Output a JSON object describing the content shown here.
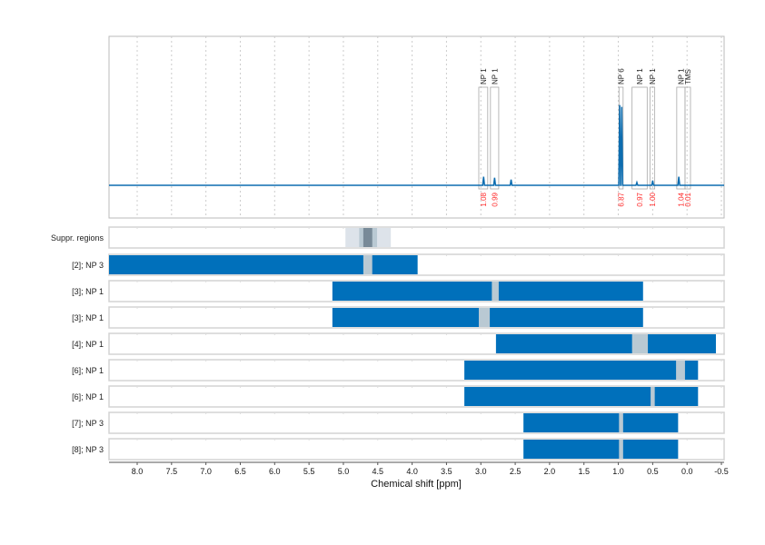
{
  "chart_data": {
    "type": "nmr-spectrum-with-region-bars",
    "xlabel": "Chemical shift [ppm]",
    "xlim": [
      8.41,
      -0.54
    ],
    "x_reversed": true,
    "x_ticks": [
      "8.0",
      "7.5",
      "7.0",
      "6.5",
      "6.0",
      "5.5",
      "5.0",
      "4.5",
      "4.0",
      "3.5",
      "3.0",
      "2.5",
      "2.0",
      "1.5",
      "1.0",
      "0.5",
      "0.0",
      "-0.5"
    ],
    "grid": "vertical dotted",
    "colors": {
      "spectrum": "#0d6db0",
      "bar": "#0070bb",
      "gap": "#b9c9d3",
      "integral_label": "#ff2a2a",
      "box": "#a8a8a8"
    },
    "spectrum_peaks": [
      {
        "ppm": 2.96,
        "height": 0.09
      },
      {
        "ppm": 2.8,
        "height": 0.08
      },
      {
        "ppm": 2.56,
        "height": 0.06
      },
      {
        "ppm": 0.98,
        "height": 0.85
      },
      {
        "ppm": 0.95,
        "height": 0.83
      },
      {
        "ppm": 0.73,
        "height": 0.03
      },
      {
        "ppm": 0.5,
        "height": 0.05
      },
      {
        "ppm": 0.12,
        "height": 0.09
      }
    ],
    "integrals": [
      {
        "label": "NP 1",
        "value": "1.08",
        "from": 3.03,
        "to": 2.9
      },
      {
        "label": "NP 1",
        "value": "0.99",
        "from": 2.86,
        "to": 2.74
      },
      {
        "label": "NP 6",
        "value": "6.87",
        "from": 0.99,
        "to": 0.93
      },
      {
        "label": "NP 1",
        "value": "0.97",
        "from": 0.8,
        "to": 0.58
      },
      {
        "label": "NP 1",
        "value": "1.00",
        "from": 0.54,
        "to": 0.47
      },
      {
        "label": "NP 1",
        "value": "1.04",
        "from": 0.15,
        "to": 0.03
      },
      {
        "label": "TMS",
        "value": "0.01",
        "from": 0.03,
        "to": -0.05
      }
    ],
    "suppressed_region": {
      "label": "Suppr. regions",
      "outer": [
        4.97,
        4.31
      ],
      "middle": [
        4.77,
        4.51
      ],
      "inner": [
        4.71,
        4.58
      ]
    },
    "rows": [
      {
        "label": "[2]; NP 3",
        "from": 8.41,
        "to": 3.92,
        "gap": [
          4.71,
          4.58
        ]
      },
      {
        "label": "[3]; NP 1",
        "from": 5.16,
        "to": 0.64,
        "gap": [
          2.84,
          2.74
        ]
      },
      {
        "label": "[3]; NP 1",
        "from": 5.16,
        "to": 0.64,
        "gap": [
          3.03,
          2.87
        ]
      },
      {
        "label": "[4]; NP 1",
        "from": 2.78,
        "to": -0.42,
        "gap": [
          0.8,
          0.57
        ]
      },
      {
        "label": "[6]; NP 1",
        "from": 3.24,
        "to": -0.16,
        "gap": [
          0.16,
          0.03
        ]
      },
      {
        "label": "[6]; NP 1",
        "from": 3.24,
        "to": -0.16,
        "gap": [
          0.53,
          0.47
        ]
      },
      {
        "label": "[7]; NP 3",
        "from": 2.38,
        "to": 0.13,
        "gap": [
          0.99,
          0.93
        ]
      },
      {
        "label": "[8]; NP 3",
        "from": 2.38,
        "to": 0.13,
        "gap": [
          0.99,
          0.93
        ]
      }
    ]
  }
}
